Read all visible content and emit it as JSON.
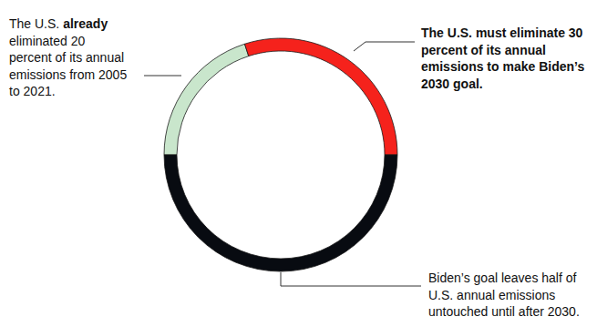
{
  "chart_data": {
    "type": "donut",
    "categories": [
      [
        [
          "The U.S. ",
          "already"
        ],
        "eliminated 20",
        "percent of its annual",
        "emissions from 2005",
        "to 2021."
      ],
      [
        "The U.S. must eliminate 30",
        "percent of its annual",
        "emissions to make Biden’s",
        "2030 goal."
      ],
      [
        "Biden’s goal leaves half of",
        "U.S. annual emissions",
        "untouched until after 2030."
      ]
    ],
    "values": [
      20,
      30,
      50
    ],
    "colors": [
      "#c9e6cc",
      "#f5221c",
      "#080b11"
    ]
  }
}
